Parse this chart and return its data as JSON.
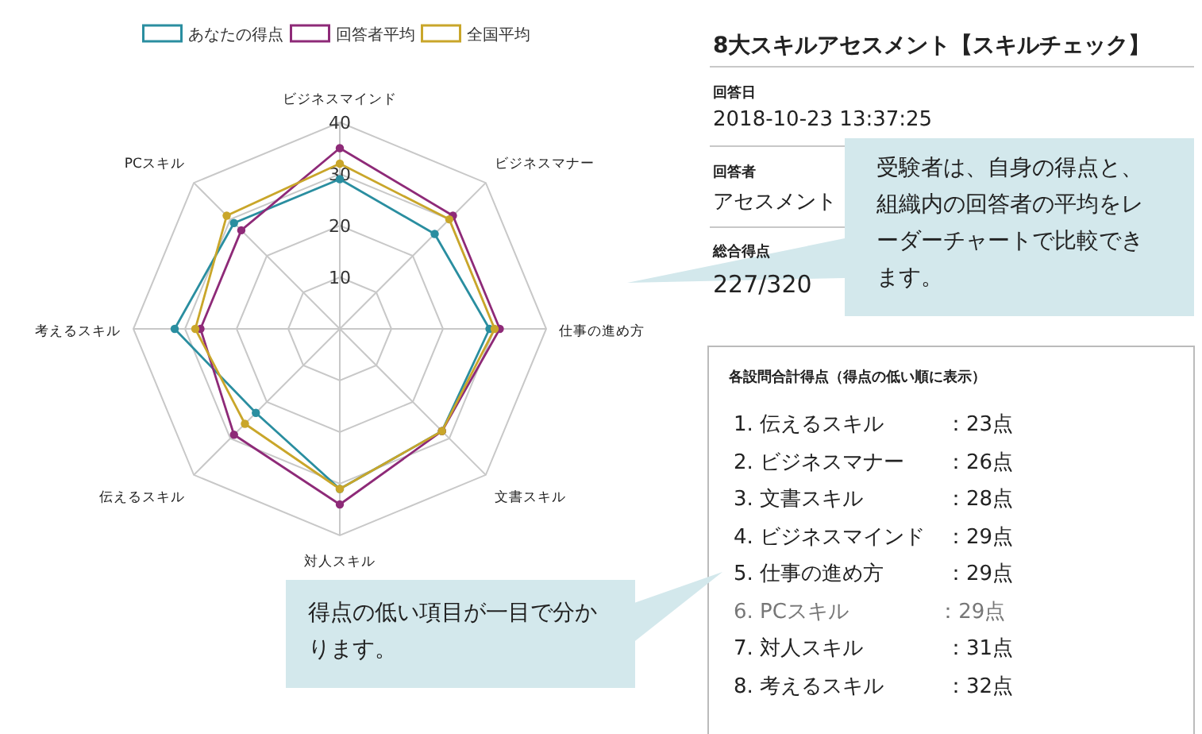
{
  "chart_data": [
    {
      "type": "radar",
      "categories": [
        "ビジネスマインド",
        "ビジネスマナー",
        "仕事の進め方",
        "文書スキル",
        "対人スキル",
        "伝えるスキル",
        "考えるスキル",
        "PCスキル"
      ],
      "series": [
        {
          "name": "あなたの得点",
          "color": "#2a8ea0",
          "values": [
            29,
            26,
            29,
            28,
            31,
            23,
            32,
            29
          ]
        },
        {
          "name": "回答者平均",
          "color": "#8e2a78",
          "values": [
            35,
            31,
            31,
            28,
            34,
            29,
            27,
            27
          ]
        },
        {
          "name": "全国平均",
          "color": "#c9a62a",
          "values": [
            32,
            30,
            30,
            28,
            31,
            26,
            28,
            31
          ]
        }
      ],
      "ylim": [
        0,
        40
      ],
      "yticks": [
        10,
        20,
        30,
        40
      ],
      "grid": true,
      "legend": "top",
      "marker": "circle"
    },
    {
      "type": "other",
      "title": "8大スキルアセスメント【スキルチェック】",
      "annotations": [
        "回答日",
        "2018-10-23 13:37:25",
        "回答者",
        "アセスメント",
        "総合得点",
        "227/320",
        "各設問合計得点（得点の低い順に表示）",
        "1. 伝えるスキル　　　：23点",
        "2. ビジネスマナー　　：26点",
        "3. 文書スキル　　　　：28点",
        "4. ビジネスマインド　：29点",
        "5. 仕事の進め方　　　：29点",
        "6. PCスキル　　　　 ：29点",
        "7. 対人スキル　　　　：31点",
        "8. 考えるスキル　　　：32点",
        "受験者は、自身の得点と、組織内の回答者の平均をレーダーチャートで比較できます。",
        "得点の低い項目が一目で分かります。"
      ]
    }
  ]
}
